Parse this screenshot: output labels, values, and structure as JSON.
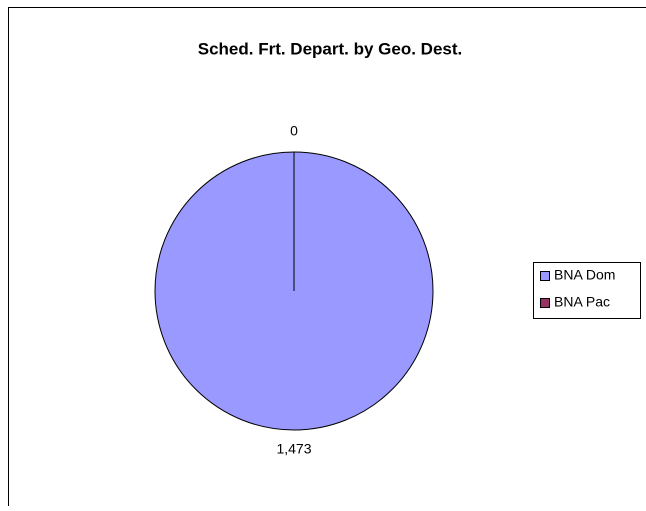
{
  "chart_data": {
    "type": "pie",
    "title": "Sched. Frt. Depart. by Geo. Dest.",
    "categories": [
      "BNA Dom",
      "BNA Pac"
    ],
    "values": [
      1473,
      0
    ],
    "value_labels": [
      "1,473",
      "0"
    ],
    "colors": [
      "#9999ff",
      "#993366"
    ],
    "legend": "right"
  }
}
